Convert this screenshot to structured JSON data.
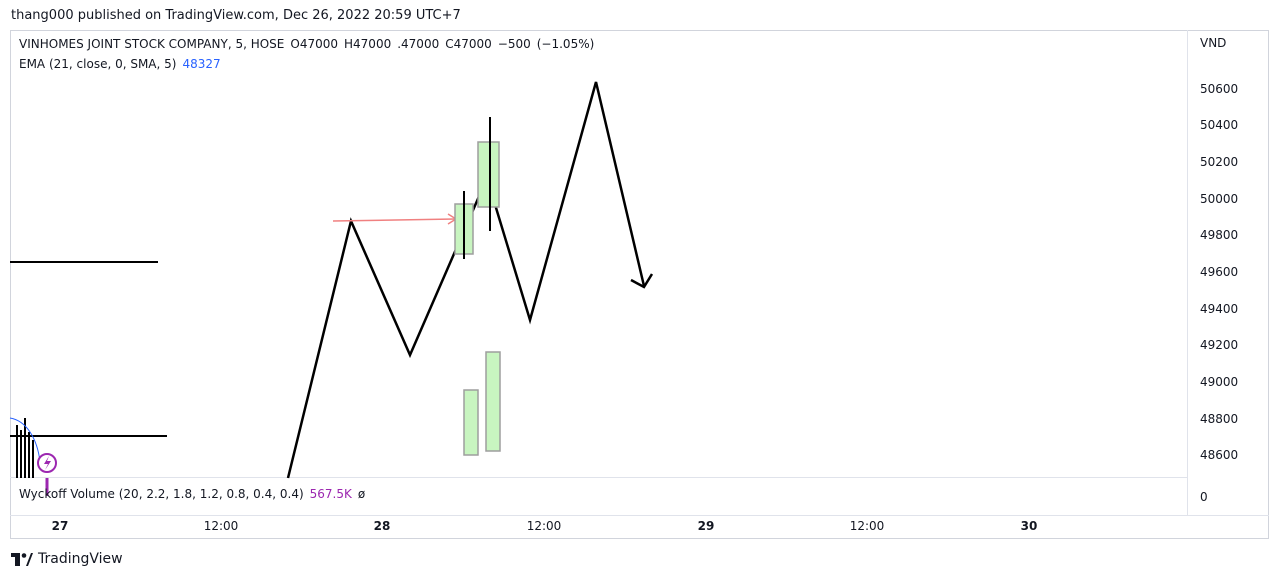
{
  "header": {
    "publish_line": "thang000 published on TradingView.com, Dec 26, 2022 20:59 UTC+7"
  },
  "legend": {
    "symbol": "VINHOMES JOINT STOCK COMPANY, 5, HOSE",
    "open": "O47000",
    "high": "H47000",
    "low": ".47000",
    "close": "C47000",
    "change": "−500",
    "change_pct": "(−1.05%)",
    "ema_label": "EMA (21, close, 0, SMA, 5)",
    "ema_value": "48327",
    "wyckoff_label": "Wyckoff Volume (20, 2.2, 1.8, 1.2, 0.8, 0.4, 0.4)",
    "wyckoff_value": "567.5K",
    "wyckoff_extra": "ø"
  },
  "price_axis": {
    "currency": "VND",
    "ticks": [
      "50600",
      "50400",
      "50200",
      "50000",
      "49800",
      "49600",
      "49400",
      "49200",
      "49000",
      "48800",
      "48600"
    ],
    "volume_tick": "0"
  },
  "time_axis": {
    "ticks": [
      {
        "label": "27",
        "bold": true
      },
      {
        "label": "12:00",
        "bold": false
      },
      {
        "label": "28",
        "bold": true
      },
      {
        "label": "12:00",
        "bold": false
      },
      {
        "label": "29",
        "bold": true
      },
      {
        "label": "12:00",
        "bold": false
      },
      {
        "label": "30",
        "bold": true
      }
    ]
  },
  "footer": {
    "brand": "TradingView"
  },
  "colors": {
    "ema": "#2962ff",
    "wyckoff": "#9c27b0",
    "drawing": "#000000",
    "box_fill": "#c8f5c0",
    "arrow": "#f08080"
  }
}
